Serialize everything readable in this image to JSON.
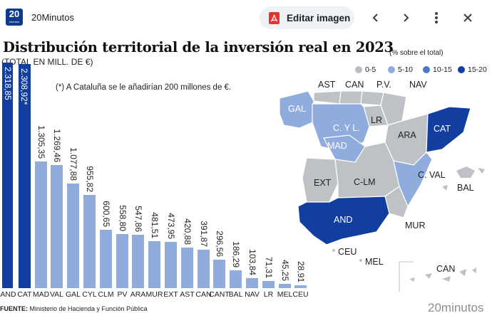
{
  "viewer": {
    "site_name": "20Minutos",
    "logo_number": "20",
    "logo_sub": "minutos",
    "edit_label": "Editar imagen",
    "icons": [
      "pdf-icon",
      "chevron-left-icon",
      "chevron-right-icon",
      "more-vert-icon",
      "close-icon"
    ]
  },
  "infographic": {
    "title": "Distribución territorial de la inversión real en 2023",
    "subtitle": "(TOTAL EN MILL. DE €)",
    "note": "(*) A Cataluña se le añadirían 200 millones de €.",
    "footer_label": "FUENTE:",
    "footer_text": " Ministerio de Hacienda y Función Pública",
    "brand": "20minutos",
    "legend_title": "(% sobre el total)",
    "legend": [
      {
        "label": "0-5",
        "color": "#b9bcc1"
      },
      {
        "label": "5-10",
        "color": "#8facdc"
      },
      {
        "label": "10-15",
        "color": "#4f77c6"
      },
      {
        "label": "15-20",
        "color": "#123e9f"
      }
    ],
    "colors": {
      "bar_dark": "#123e9f",
      "bar_light": "#8facdc",
      "map_grey": "#bec1c6",
      "map_light": "#8facdc",
      "map_dark": "#123e9f"
    }
  },
  "chart_data": {
    "type": "bar",
    "title": "Distribución territorial de la inversión real en 2023",
    "ylabel": "TOTAL EN MILL. DE €",
    "categories": [
      "AND",
      "CAT",
      "MAD",
      "VAL",
      "GAL",
      "CYL",
      "CLM",
      "PV",
      "ARA",
      "MUR",
      "EXT",
      "AST",
      "CAN",
      "CANT",
      "BAL",
      "NAV",
      "LR",
      "MEL",
      "CEU"
    ],
    "values": [
      2318.85,
      2308.92,
      1305.35,
      1269.46,
      1077.88,
      955.82,
      600.65,
      558.8,
      547.86,
      481.51,
      473.95,
      420.88,
      391.87,
      296.56,
      186.29,
      103.84,
      71.31,
      45.25,
      28.91
    ],
    "value_labels": [
      "2.318,85",
      "2.308,92*",
      "1.305,35",
      "1.269,46",
      "1.077,88",
      "955,82",
      "600,65",
      "558,80",
      "547,86",
      "481,51",
      "473,95",
      "420,88",
      "391,87",
      "296,56",
      "186,29",
      "103,84",
      "71,31",
      "45,25",
      "28,91"
    ],
    "display_labels": [
      "AND",
      "CAT",
      "MAD",
      "VAL",
      "GAL",
      "CYL",
      "CLM",
      "PV",
      "ARA",
      "MUR",
      "EXT",
      "AST",
      "CAN",
      "CANT",
      "BAL",
      "NAV",
      "LR",
      "MEL",
      "CEU"
    ],
    "highlight": [
      true,
      true,
      false,
      false,
      false,
      false,
      false,
      false,
      false,
      false,
      false,
      false,
      false,
      false,
      false,
      false,
      false,
      false,
      false
    ],
    "ylim": [
      0,
      2400
    ]
  },
  "map_labels": [
    "AST",
    "CAN",
    "P.V.",
    "NAV",
    "GAL",
    "LR",
    "C. Y L.",
    "ARA",
    "CAT",
    "MAD",
    "EXT",
    "C-LM",
    "C. VAL",
    "BAL",
    "AND",
    "MUR",
    "CEU",
    "MEL",
    "CAN"
  ]
}
